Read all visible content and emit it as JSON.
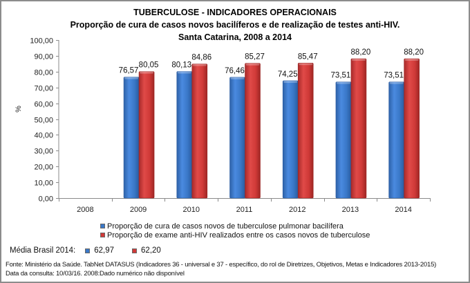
{
  "chart_data": {
    "type": "bar",
    "title": "TUBERCULOSE - INDICADORES OPERACIONAIS",
    "subtitle": "Proporção de cura de casos novos bacilíferos e de realização de testes anti-HIV.",
    "subtitle2": "Santa Catarina, 2008 a 2014",
    "xlabel": "",
    "ylabel": "%",
    "ylim": [
      0,
      100
    ],
    "yticks": [
      0,
      10,
      20,
      30,
      40,
      50,
      60,
      70,
      80,
      90,
      100
    ],
    "ytick_labels": [
      "0,00",
      "10,00",
      "20,00",
      "30,00",
      "40,00",
      "50,00",
      "60,00",
      "70,00",
      "80,00",
      "90,00",
      "100,00"
    ],
    "categories": [
      "2008",
      "2009",
      "2010",
      "2011",
      "2012",
      "2013",
      "2014"
    ],
    "series": [
      {
        "name": "Proporção de cura de casos novos de tuberculose pulmonar bacilífera",
        "color": "#3a78c8",
        "values": [
          null,
          76.57,
          80.13,
          76.46,
          74.25,
          73.51,
          73.51
        ],
        "labels": [
          "",
          "76,57",
          "80,13",
          "76,46",
          "74,25",
          "73,51",
          "73,51"
        ]
      },
      {
        "name": "Proporção de exame anti-HIV realizados entre os casos novos de tuberculose",
        "color": "#d03a38",
        "values": [
          null,
          80.05,
          84.86,
          85.27,
          85.47,
          88.2,
          88.2
        ],
        "labels": [
          "",
          "80,05",
          "84,86",
          "85,27",
          "85,47",
          "88,20",
          "88,20"
        ]
      }
    ],
    "grid": false,
    "legend_position": "bottom"
  },
  "media_brasil": {
    "label": "Média Brasil 2014:",
    "values": [
      "62,97",
      "62,20"
    ]
  },
  "source": {
    "line1": "Fonte: Ministério da Saúde. TabNet DATASUS (Indicadores 36 - universal e 37 - específico, do rol de Diretrizes, Objetivos, Metas e Indicadores 2013-2015)",
    "line2": "Data da consulta: 10/03/16. 2008:Dado numérico não disponível"
  }
}
